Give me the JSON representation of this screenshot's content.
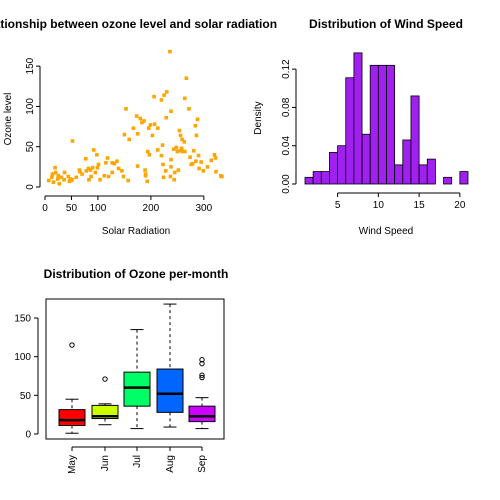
{
  "chart_data": [
    {
      "type": "scatter",
      "title": "Relationship between ozone level and solar radiation",
      "xlabel": "Solar Radiation",
      "ylabel": "Ozone level",
      "xlim": [
        0,
        340
      ],
      "ylim": [
        0,
        170
      ],
      "xticks": [
        0,
        50,
        100,
        200,
        300
      ],
      "yticks": [
        0,
        50,
        100,
        150
      ],
      "point_color": "#FFA500",
      "points": [
        [
          7,
          8
        ],
        [
          13,
          12
        ],
        [
          14,
          16
        ],
        [
          16,
          6
        ],
        [
          19,
          24
        ],
        [
          20,
          18
        ],
        [
          24,
          10
        ],
        [
          25,
          14
        ],
        [
          27,
          4
        ],
        [
          31,
          12
        ],
        [
          36,
          9
        ],
        [
          37,
          18
        ],
        [
          44,
          13
        ],
        [
          46,
          7
        ],
        [
          48,
          10
        ],
        [
          49,
          8
        ],
        [
          51,
          9
        ],
        [
          52,
          57
        ],
        [
          59,
          12
        ],
        [
          65,
          21
        ],
        [
          66,
          19
        ],
        [
          70,
          16
        ],
        [
          77,
          35
        ],
        [
          78,
          20
        ],
        [
          82,
          23
        ],
        [
          83,
          9
        ],
        [
          86,
          21
        ],
        [
          87,
          13
        ],
        [
          90,
          24
        ],
        [
          92,
          46
        ],
        [
          95,
          18
        ],
        [
          98,
          40
        ],
        [
          99,
          24
        ],
        [
          101,
          28
        ],
        [
          104,
          9
        ],
        [
          112,
          14
        ],
        [
          115,
          30
        ],
        [
          118,
          36
        ],
        [
          120,
          13
        ],
        [
          127,
          30
        ],
        [
          127,
          18
        ],
        [
          131,
          29
        ],
        [
          136,
          32
        ],
        [
          139,
          23
        ],
        [
          145,
          20
        ],
        [
          148,
          13
        ],
        [
          150,
          65
        ],
        [
          153,
          97
        ],
        [
          157,
          8
        ],
        [
          159,
          59
        ],
        [
          167,
          73
        ],
        [
          173,
          88
        ],
        [
          175,
          26
        ],
        [
          175,
          66
        ],
        [
          180,
          85
        ],
        [
          183,
          80
        ],
        [
          187,
          82
        ],
        [
          189,
          21
        ],
        [
          190,
          14
        ],
        [
          190,
          16
        ],
        [
          193,
          7
        ],
        [
          194,
          44
        ],
        [
          196,
          73
        ],
        [
          197,
          40
        ],
        [
          199,
          77
        ],
        [
          203,
          64
        ],
        [
          206,
          112
        ],
        [
          207,
          78
        ],
        [
          213,
          73
        ],
        [
          213,
          46
        ],
        [
          220,
          108
        ],
        [
          220,
          39
        ],
        [
          222,
          52
        ],
        [
          223,
          28
        ],
        [
          224,
          12
        ],
        [
          225,
          114
        ],
        [
          228,
          20
        ],
        [
          229,
          86
        ],
        [
          230,
          118
        ],
        [
          236,
          168
        ],
        [
          237,
          13
        ],
        [
          238,
          25
        ],
        [
          238,
          34
        ],
        [
          238,
          94
        ],
        [
          243,
          47
        ],
        [
          244,
          9
        ],
        [
          245,
          18
        ],
        [
          248,
          49
        ],
        [
          250,
          44
        ],
        [
          252,
          21
        ],
        [
          254,
          70
        ],
        [
          255,
          45
        ],
        [
          256,
          64
        ],
        [
          258,
          48
        ],
        [
          259,
          59
        ],
        [
          260,
          44
        ],
        [
          263,
          56
        ],
        [
          264,
          110
        ],
        [
          264,
          44
        ],
        [
          267,
          135
        ],
        [
          272,
          97
        ],
        [
          274,
          37
        ],
        [
          276,
          28
        ],
        [
          279,
          29
        ],
        [
          281,
          45
        ],
        [
          284,
          76
        ],
        [
          285,
          32
        ],
        [
          286,
          64
        ],
        [
          288,
          84
        ],
        [
          290,
          39
        ],
        [
          291,
          23
        ],
        [
          295,
          31
        ],
        [
          299,
          20
        ],
        [
          307,
          25
        ],
        [
          314,
          33
        ],
        [
          320,
          40
        ],
        [
          322,
          36
        ],
        [
          323,
          19
        ],
        [
          332,
          14
        ],
        [
          334,
          13
        ]
      ]
    },
    {
      "type": "bar",
      "title": "Distribution of Wind Speed",
      "xlabel": "Wind Speed",
      "ylabel": "Density",
      "xlim": [
        1,
        21
      ],
      "ylim": [
        0,
        0.14
      ],
      "xticks": [
        5,
        10,
        15,
        20
      ],
      "yticks": [
        0.0,
        0.04,
        0.08,
        0.12
      ],
      "ytick_labels": [
        "0.00",
        "0.04",
        "0.08",
        "0.12"
      ],
      "bar_color": "#A020F0",
      "bin_edges": [
        1,
        2,
        3,
        4,
        5,
        6,
        7,
        8,
        9,
        10,
        11,
        12,
        13,
        14,
        15,
        16,
        17,
        18,
        19,
        20,
        21
      ],
      "values": [
        0.007,
        0.013,
        0.013,
        0.033,
        0.04,
        0.111,
        0.137,
        0.052,
        0.124,
        0.124,
        0.124,
        0.02,
        0.046,
        0.092,
        0.02,
        0.026,
        0,
        0.007,
        0,
        0.013
      ]
    },
    {
      "type": "box",
      "title": "Distribution of Ozone per-month",
      "xlabel": "",
      "ylabel": "",
      "ylim": [
        0,
        175
      ],
      "yticks": [
        0,
        50,
        100,
        150
      ],
      "categories": [
        "May",
        "Jun",
        "Jul",
        "Aug",
        "Sep"
      ],
      "colors": [
        "#FF0000",
        "#CCFF00",
        "#00FF66",
        "#0066FF",
        "#CC00FF"
      ],
      "boxes": [
        {
          "min": 1,
          "q1": 11,
          "median": 18,
          "q3": 31.5,
          "max": 45,
          "outliers": [
            115
          ]
        },
        {
          "min": 12,
          "q1": 20,
          "median": 23,
          "q3": 37,
          "max": 39,
          "outliers": [
            71
          ]
        },
        {
          "min": 7,
          "q1": 36,
          "median": 60,
          "q3": 80,
          "max": 135,
          "outliers": []
        },
        {
          "min": 9,
          "q1": 28,
          "median": 52,
          "q3": 84,
          "max": 168,
          "outliers": []
        },
        {
          "min": 7,
          "q1": 16,
          "median": 23,
          "q3": 36,
          "max": 47,
          "outliers": [
            73,
            76,
            91,
            96
          ]
        }
      ]
    }
  ]
}
